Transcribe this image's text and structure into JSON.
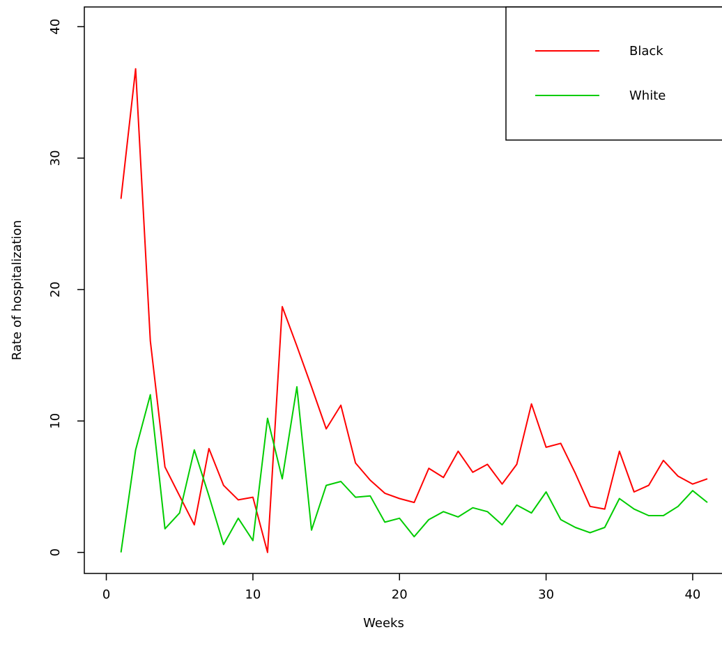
{
  "chart_data": {
    "type": "line",
    "xlabel": "Weeks",
    "ylabel": "Rate of hospitalization",
    "xlim": [
      -1.5,
      42
    ],
    "ylim": [
      -1.6,
      41.5
    ],
    "xticks": [
      0,
      10,
      20,
      30,
      40
    ],
    "yticks": [
      0,
      10,
      20,
      30,
      40
    ],
    "grid": false,
    "legend_position": "top-right",
    "x": [
      1,
      2,
      3,
      4,
      5,
      6,
      7,
      8,
      9,
      10,
      11,
      12,
      13,
      14,
      15,
      16,
      17,
      18,
      19,
      20,
      21,
      22,
      23,
      24,
      25,
      26,
      27,
      28,
      29,
      30,
      31,
      32,
      33,
      34,
      35,
      36,
      37,
      38,
      39,
      40,
      41
    ],
    "series": [
      {
        "name": "Black",
        "color": "#ff0000",
        "values": [
          26.9,
          36.8,
          16.1,
          6.5,
          4.3,
          2.1,
          7.9,
          5.1,
          4.0,
          4.2,
          0.0,
          18.7,
          15.7,
          12.6,
          9.4,
          11.2,
          6.8,
          5.5,
          4.5,
          4.1,
          3.8,
          6.4,
          5.7,
          7.7,
          6.1,
          6.7,
          5.2,
          6.7,
          11.3,
          8.0,
          8.3,
          6.0,
          3.5,
          3.3,
          7.7,
          4.6,
          5.1,
          7.0,
          5.8,
          5.2,
          5.6
        ]
      },
      {
        "name": "White",
        "color": "#00cc00",
        "values": [
          0.0,
          7.8,
          12.0,
          1.8,
          3.0,
          7.8,
          4.3,
          0.6,
          2.6,
          0.9,
          10.2,
          5.6,
          12.6,
          1.7,
          5.1,
          5.4,
          4.2,
          4.3,
          2.3,
          2.6,
          1.2,
          2.5,
          3.1,
          2.7,
          3.4,
          3.1,
          2.1,
          3.6,
          3.0,
          4.6,
          2.5,
          1.9,
          1.5,
          1.9,
          4.1,
          3.3,
          2.8,
          2.8,
          3.5,
          4.7,
          3.8
        ]
      }
    ]
  }
}
